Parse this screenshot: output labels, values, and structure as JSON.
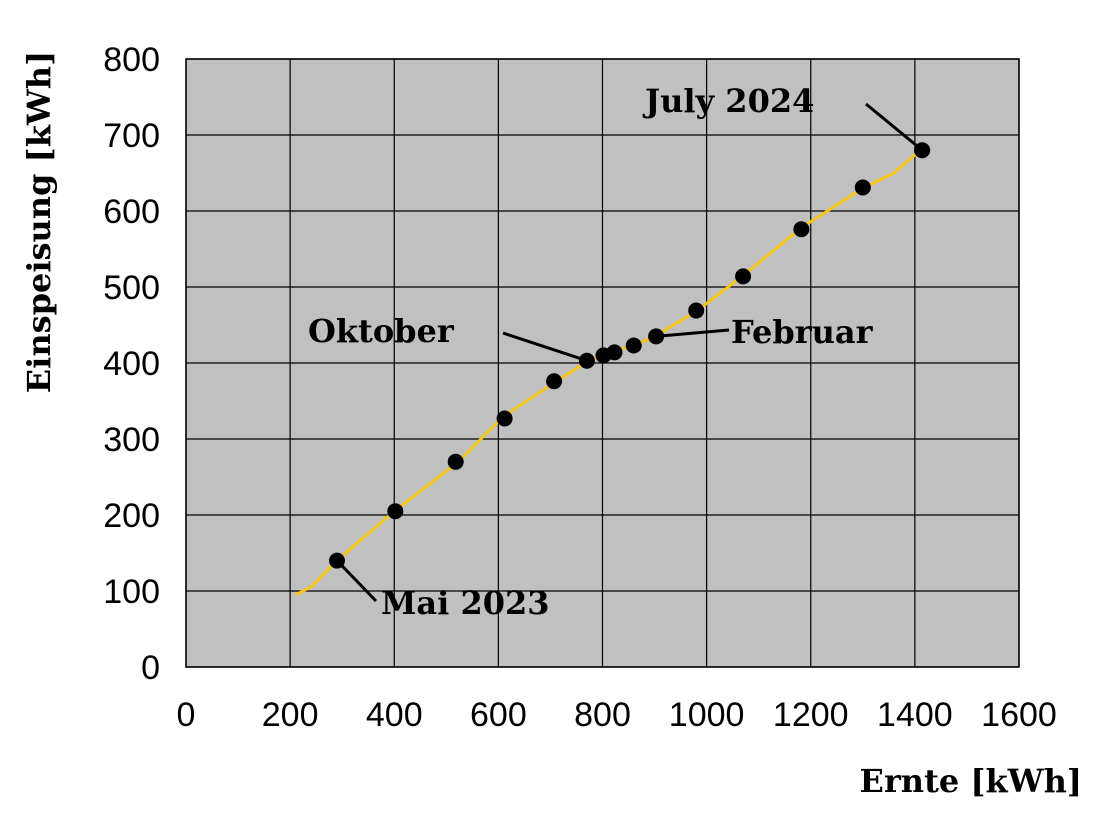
{
  "chart_data": {
    "type": "scatter",
    "title": "",
    "xlabel": "Ernte [kWh]",
    "ylabel": "Einspeisung [kWh]",
    "xlim": [
      0,
      1600
    ],
    "ylim": [
      0,
      800
    ],
    "x_ticks": [
      "0",
      "200",
      "400",
      "600",
      "800",
      "1000",
      "1200",
      "1400",
      "1600"
    ],
    "y_ticks": [
      "0",
      "100",
      "200",
      "300",
      "400",
      "500",
      "600",
      "700",
      "800"
    ],
    "grid": true,
    "colors": {
      "plot_background": "#c0c0c0",
      "trend_line": "#f5c518",
      "points": "#000000",
      "grid": "#000000"
    },
    "trend_line": {
      "x": [
        210,
        240,
        290,
        400,
        520,
        610,
        710,
        770,
        800,
        820,
        860,
        900,
        980,
        1070,
        1180,
        1300,
        1360,
        1410
      ],
      "y": [
        95,
        105,
        140,
        205,
        268,
        330,
        375,
        402,
        410,
        415,
        423,
        435,
        468,
        515,
        577,
        630,
        650,
        680
      ]
    },
    "points": {
      "x": [
        290,
        402,
        518,
        612,
        707,
        770,
        802,
        823,
        860,
        903,
        980,
        1070,
        1182,
        1300,
        1414
      ],
      "y": [
        140,
        205,
        270,
        327,
        376,
        403,
        410,
        414,
        423,
        435,
        469,
        514,
        576,
        631,
        680
      ]
    },
    "annotations": [
      {
        "text": "July 2024",
        "x": 1414,
        "y": 680
      },
      {
        "text": "Oktober",
        "x": 770,
        "y": 403
      },
      {
        "text": "Februar",
        "x": 903,
        "y": 435
      },
      {
        "text": "Mai 2023",
        "x": 290,
        "y": 140
      }
    ]
  }
}
